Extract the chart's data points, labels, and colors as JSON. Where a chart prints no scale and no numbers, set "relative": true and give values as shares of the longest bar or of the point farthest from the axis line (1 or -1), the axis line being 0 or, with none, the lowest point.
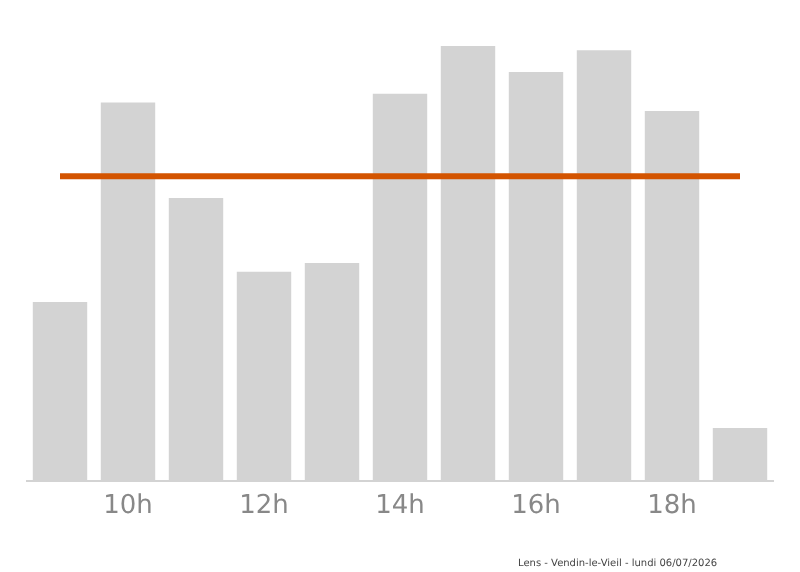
{
  "chart_data": {
    "type": "bar",
    "relative": true,
    "categories": [
      null,
      "10h",
      null,
      "12h",
      null,
      "14h",
      null,
      "16h",
      null,
      "18h",
      null
    ],
    "values": [
      0.41,
      0.87,
      0.65,
      0.48,
      0.5,
      0.89,
      1,
      0.94,
      0.99,
      0.85,
      0.12
    ],
    "color": "#d3d3d3",
    "ref_lines": [
      {
        "axis": "y",
        "value": 0.7,
        "color": "#d35400",
        "line_style": "solid"
      }
    ],
    "annotations": [
      "Lens - Vendin-le-Vieil - lundi 06/07/2026"
    ],
    "grid": false
  }
}
